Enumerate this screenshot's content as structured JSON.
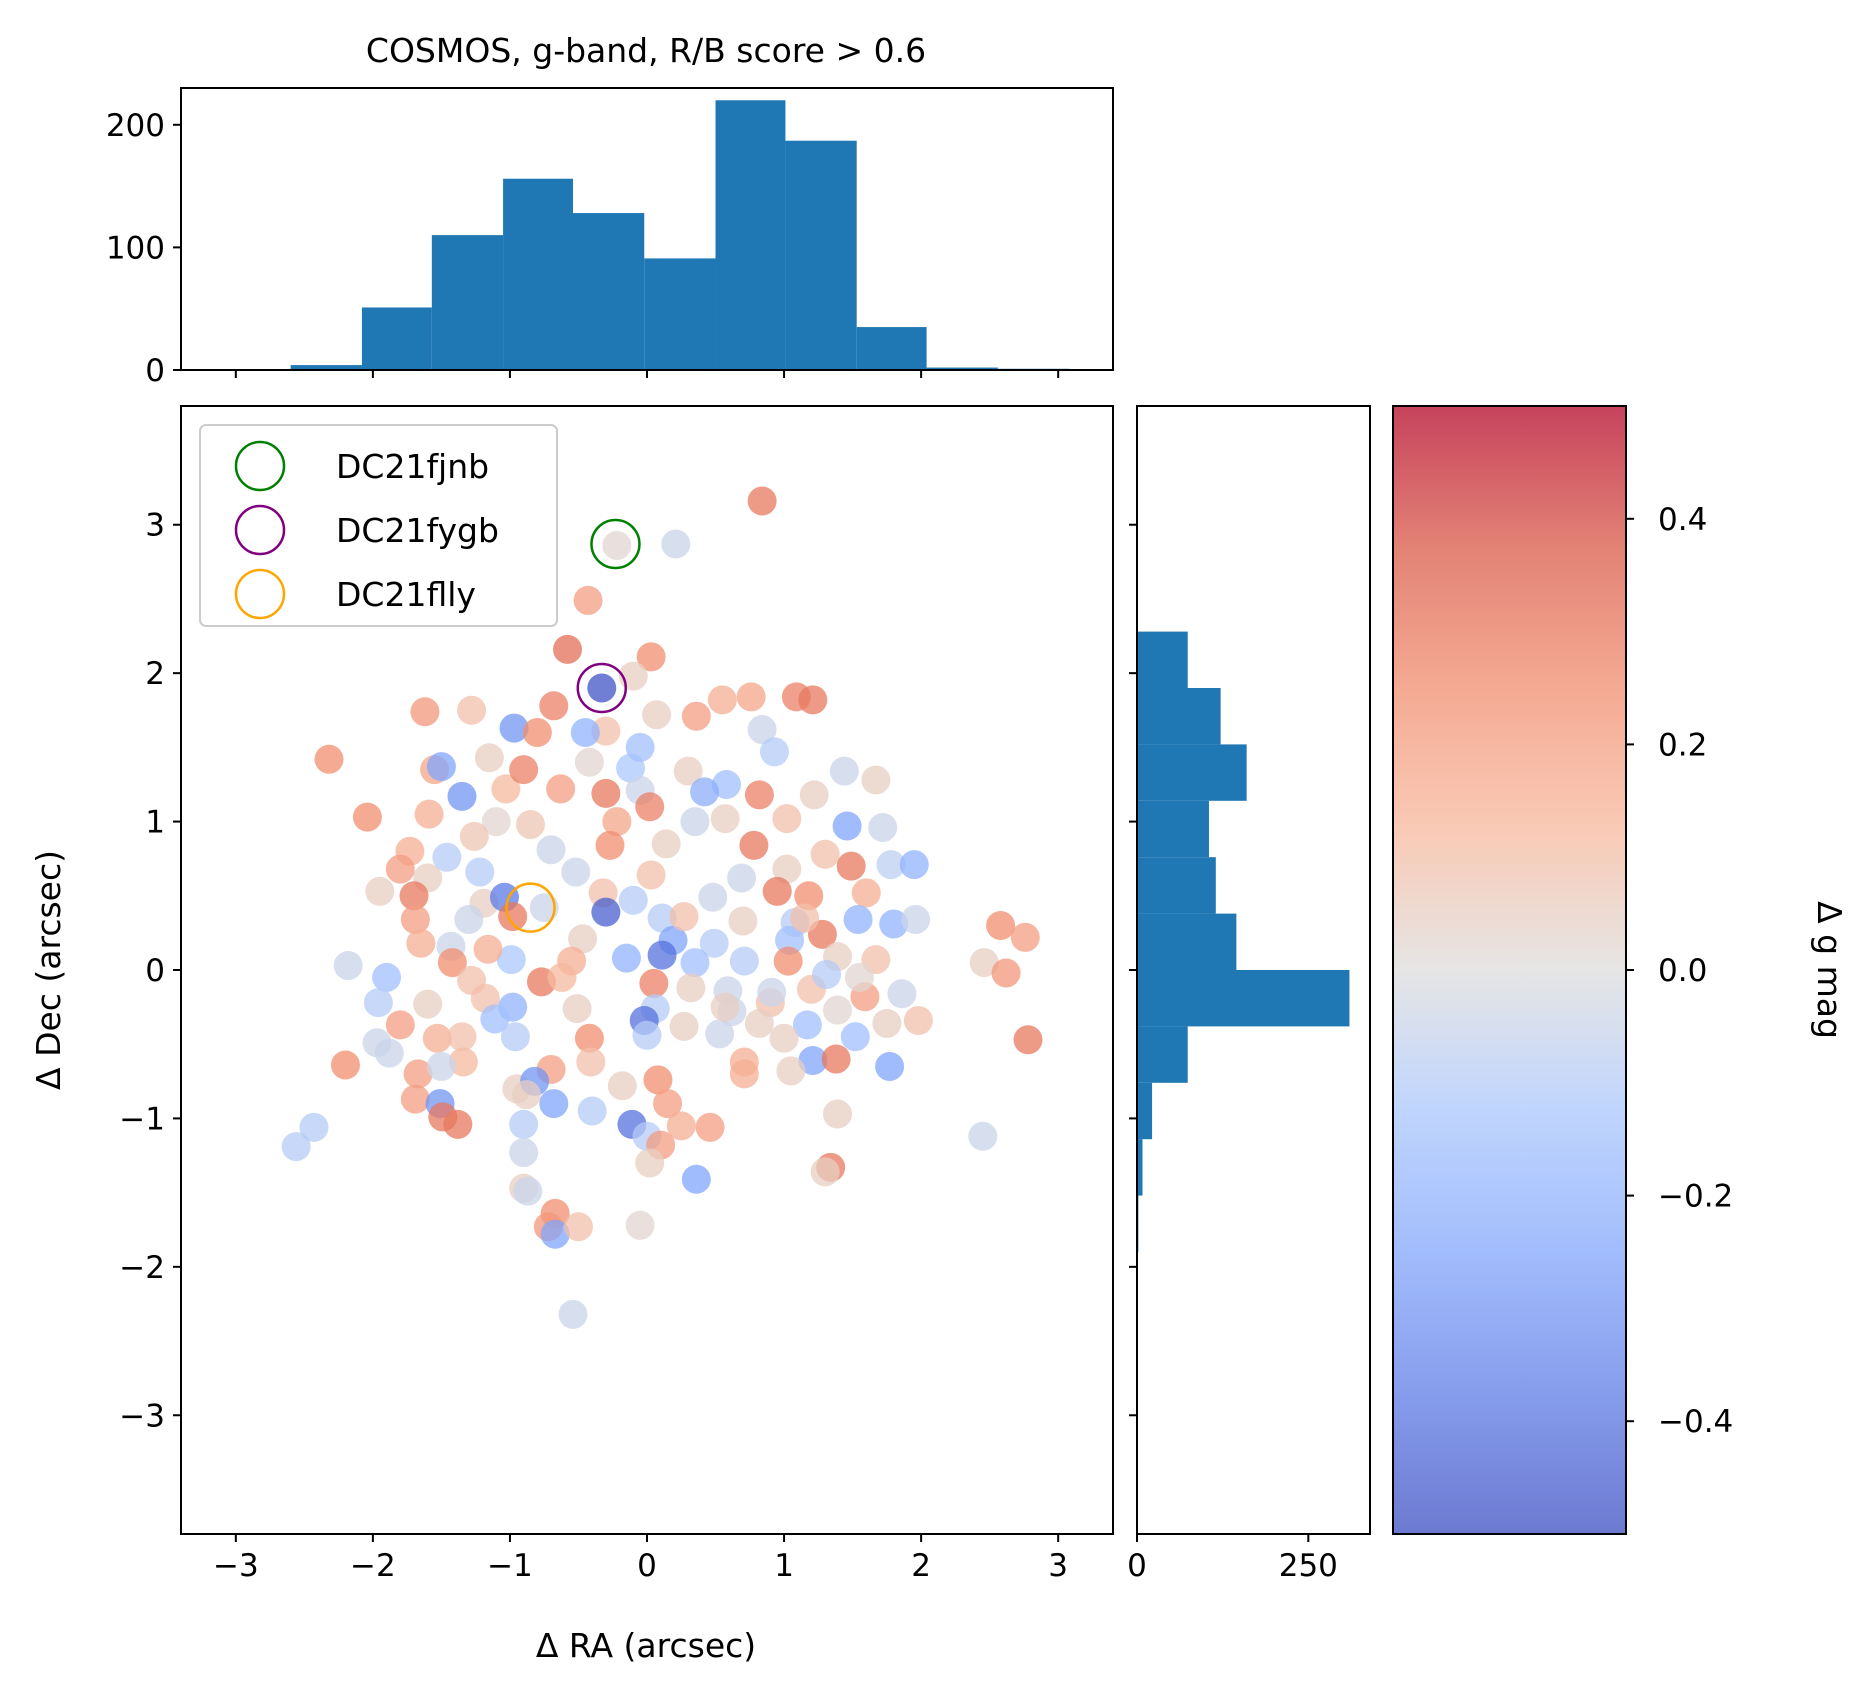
{
  "chart_data": {
    "type": "scatter",
    "title": "COSMOS, g-band, R/B score > 0.6",
    "xlabel": "Δ RA (arcsec)",
    "ylabel": "Δ Dec (arcsec)",
    "xlim": [
      -3.4,
      3.4
    ],
    "ylim": [
      -3.8,
      3.8
    ],
    "xticks": [
      -3,
      -2,
      -1,
      0,
      1,
      2,
      3
    ],
    "xtick_labels": [
      "−3",
      "−2",
      "−1",
      "0",
      "1",
      "2",
      "3"
    ],
    "yticks": [
      -3,
      -2,
      -1,
      0,
      1,
      2,
      3
    ],
    "ytick_labels": [
      "−3",
      "−2",
      "−1",
      "0",
      "1",
      "2",
      "3"
    ],
    "grid": false,
    "legend_placement": "top-left",
    "markers": [
      {
        "name": "DC21fjnb",
        "x": -0.23,
        "y": 2.87,
        "color": "#008000"
      },
      {
        "name": "DC21fygb",
        "x": -0.33,
        "y": 1.9,
        "color": "#800080"
      },
      {
        "name": "DC21flly",
        "x": -0.85,
        "y": 0.42,
        "color": "#ffa500"
      }
    ],
    "hist_x": {
      "ylim": [
        0,
        230
      ],
      "yticks": [
        0,
        100,
        200
      ],
      "ytick_labels": [
        "0",
        "100",
        "200"
      ],
      "bin_edges": [
        -2.6,
        -2.08,
        -1.57,
        -1.05,
        -0.54,
        -0.02,
        0.5,
        1.01,
        1.53,
        2.04,
        2.56,
        3.08
      ],
      "counts": [
        4,
        51,
        110,
        156,
        128,
        91,
        220,
        187,
        35,
        2,
        1
      ]
    },
    "hist_y": {
      "xlim": [
        0,
        340
      ],
      "xticks": [
        0,
        250
      ],
      "xtick_labels": [
        "0",
        "250"
      ],
      "bin_edges": [
        -1.9,
        -1.52,
        -1.14,
        -0.76,
        -0.38,
        0.0,
        0.38,
        0.76,
        1.14,
        1.52,
        1.9,
        2.28
      ],
      "counts": [
        2,
        8,
        22,
        74,
        310,
        145,
        115,
        105,
        160,
        122,
        74
      ]
    },
    "colorbar": {
      "label": "Δ g mag",
      "range": [
        -0.5,
        0.5
      ],
      "ticks": [
        -0.4,
        -0.2,
        0.0,
        0.2,
        0.4
      ],
      "tick_labels": [
        "−0.4",
        "−0.2",
        "0.0",
        "0.2",
        "0.4"
      ],
      "colormap": "coolwarm",
      "alpha": 0.75
    },
    "points": [
      {
        "x": 0.84,
        "y": 3.16,
        "v": 0.3
      },
      {
        "x": 0.21,
        "y": 2.87,
        "v": -0.05
      },
      {
        "x": -0.22,
        "y": 2.86,
        "v": 0.02
      },
      {
        "x": -0.43,
        "y": 2.49,
        "v": 0.2
      },
      {
        "x": -0.58,
        "y": 2.16,
        "v": 0.32
      },
      {
        "x": 0.03,
        "y": 2.11,
        "v": 0.25
      },
      {
        "x": -0.33,
        "y": 1.9,
        "v": -0.48
      },
      {
        "x": -0.1,
        "y": 1.98,
        "v": 0.05
      },
      {
        "x": -1.62,
        "y": 1.74,
        "v": 0.22
      },
      {
        "x": -1.28,
        "y": 1.75,
        "v": 0.1
      },
      {
        "x": -0.68,
        "y": 1.78,
        "v": 0.28
      },
      {
        "x": 0.55,
        "y": 1.82,
        "v": 0.15
      },
      {
        "x": 1.09,
        "y": 1.84,
        "v": 0.28
      },
      {
        "x": 1.21,
        "y": 1.82,
        "v": 0.3
      },
      {
        "x": 0.76,
        "y": 1.84,
        "v": 0.18
      },
      {
        "x": -0.97,
        "y": 1.63,
        "v": -0.3
      },
      {
        "x": -0.8,
        "y": 1.6,
        "v": 0.25
      },
      {
        "x": -0.3,
        "y": 1.61,
        "v": 0.1
      },
      {
        "x": 0.07,
        "y": 1.72,
        "v": 0.05
      },
      {
        "x": 0.36,
        "y": 1.71,
        "v": 0.2
      },
      {
        "x": 0.84,
        "y": 1.62,
        "v": -0.05
      },
      {
        "x": 0.93,
        "y": 1.47,
        "v": -0.1
      },
      {
        "x": -2.32,
        "y": 1.42,
        "v": 0.25
      },
      {
        "x": -1.55,
        "y": 1.35,
        "v": 0.18
      },
      {
        "x": -1.15,
        "y": 1.43,
        "v": 0.05
      },
      {
        "x": -1.5,
        "y": 1.37,
        "v": -0.25
      },
      {
        "x": -0.42,
        "y": 1.4,
        "v": 0.02
      },
      {
        "x": -0.12,
        "y": 1.36,
        "v": -0.12
      },
      {
        "x": 0.3,
        "y": 1.34,
        "v": 0.05
      },
      {
        "x": 0.58,
        "y": 1.25,
        "v": -0.15
      },
      {
        "x": 1.44,
        "y": 1.34,
        "v": -0.05
      },
      {
        "x": 1.67,
        "y": 1.28,
        "v": 0.05
      },
      {
        "x": -1.35,
        "y": 1.17,
        "v": -0.3
      },
      {
        "x": -1.03,
        "y": 1.22,
        "v": 0.12
      },
      {
        "x": -0.63,
        "y": 1.22,
        "v": 0.2
      },
      {
        "x": -0.3,
        "y": 1.19,
        "v": 0.3
      },
      {
        "x": -0.05,
        "y": 1.21,
        "v": -0.05
      },
      {
        "x": 0.42,
        "y": 1.2,
        "v": -0.22
      },
      {
        "x": 0.82,
        "y": 1.18,
        "v": 0.28
      },
      {
        "x": 1.22,
        "y": 1.18,
        "v": 0.05
      },
      {
        "x": -2.04,
        "y": 1.03,
        "v": 0.25
      },
      {
        "x": -1.59,
        "y": 1.05,
        "v": 0.15
      },
      {
        "x": -1.1,
        "y": 1.0,
        "v": 0.02
      },
      {
        "x": -0.85,
        "y": 0.98,
        "v": 0.08
      },
      {
        "x": -0.22,
        "y": 1.0,
        "v": 0.18
      },
      {
        "x": 0.02,
        "y": 1.1,
        "v": 0.28
      },
      {
        "x": 0.35,
        "y": 1.0,
        "v": -0.05
      },
      {
        "x": 1.02,
        "y": 1.02,
        "v": 0.1
      },
      {
        "x": 1.46,
        "y": 0.97,
        "v": -0.25
      },
      {
        "x": 1.72,
        "y": 0.96,
        "v": -0.05
      },
      {
        "x": -1.73,
        "y": 0.8,
        "v": 0.15
      },
      {
        "x": -1.46,
        "y": 0.76,
        "v": -0.1
      },
      {
        "x": -0.7,
        "y": 0.81,
        "v": -0.05
      },
      {
        "x": -0.27,
        "y": 0.84,
        "v": 0.25
      },
      {
        "x": 0.14,
        "y": 0.85,
        "v": 0.05
      },
      {
        "x": 0.78,
        "y": 0.84,
        "v": 0.3
      },
      {
        "x": 1.3,
        "y": 0.78,
        "v": 0.1
      },
      {
        "x": 1.78,
        "y": 0.71,
        "v": -0.08
      },
      {
        "x": 1.95,
        "y": 0.71,
        "v": -0.2
      },
      {
        "x": -1.8,
        "y": 0.68,
        "v": 0.2
      },
      {
        "x": -1.6,
        "y": 0.62,
        "v": 0.05
      },
      {
        "x": -1.22,
        "y": 0.66,
        "v": -0.1
      },
      {
        "x": -0.52,
        "y": 0.66,
        "v": -0.05
      },
      {
        "x": 0.03,
        "y": 0.64,
        "v": 0.1
      },
      {
        "x": 0.69,
        "y": 0.62,
        "v": -0.05
      },
      {
        "x": 1.02,
        "y": 0.68,
        "v": 0.05
      },
      {
        "x": 1.49,
        "y": 0.7,
        "v": 0.3
      },
      {
        "x": -1.95,
        "y": 0.53,
        "v": 0.05
      },
      {
        "x": -1.7,
        "y": 0.5,
        "v": 0.3
      },
      {
        "x": -1.19,
        "y": 0.45,
        "v": 0.05
      },
      {
        "x": -1.04,
        "y": 0.49,
        "v": -0.38
      },
      {
        "x": -0.32,
        "y": 0.52,
        "v": 0.1
      },
      {
        "x": -0.1,
        "y": 0.47,
        "v": -0.1
      },
      {
        "x": 0.48,
        "y": 0.49,
        "v": -0.05
      },
      {
        "x": 0.95,
        "y": 0.53,
        "v": 0.3
      },
      {
        "x": 1.18,
        "y": 0.5,
        "v": 0.25
      },
      {
        "x": 1.6,
        "y": 0.52,
        "v": 0.15
      },
      {
        "x": -1.69,
        "y": 0.34,
        "v": 0.2
      },
      {
        "x": -1.3,
        "y": 0.34,
        "v": -0.05
      },
      {
        "x": -0.98,
        "y": 0.36,
        "v": 0.3
      },
      {
        "x": -0.3,
        "y": 0.39,
        "v": -0.45
      },
      {
        "x": 0.11,
        "y": 0.35,
        "v": -0.1
      },
      {
        "x": 0.7,
        "y": 0.33,
        "v": 0.05
      },
      {
        "x": 1.08,
        "y": 0.32,
        "v": -0.1
      },
      {
        "x": 1.54,
        "y": 0.34,
        "v": -0.2
      },
      {
        "x": 1.8,
        "y": 0.31,
        "v": -0.2
      },
      {
        "x": 1.96,
        "y": 0.34,
        "v": -0.05
      },
      {
        "x": 2.58,
        "y": 0.3,
        "v": 0.25
      },
      {
        "x": 2.76,
        "y": 0.22,
        "v": 0.2
      },
      {
        "x": -1.65,
        "y": 0.18,
        "v": 0.15
      },
      {
        "x": -1.43,
        "y": 0.16,
        "v": -0.05
      },
      {
        "x": -0.47,
        "y": 0.21,
        "v": 0.05
      },
      {
        "x": 0.19,
        "y": 0.2,
        "v": -0.25
      },
      {
        "x": 0.49,
        "y": 0.18,
        "v": -0.1
      },
      {
        "x": 1.04,
        "y": 0.2,
        "v": -0.15
      },
      {
        "x": 1.28,
        "y": 0.24,
        "v": 0.3
      },
      {
        "x": -2.18,
        "y": 0.03,
        "v": -0.05
      },
      {
        "x": -1.42,
        "y": 0.05,
        "v": 0.25
      },
      {
        "x": -0.99,
        "y": 0.07,
        "v": -0.12
      },
      {
        "x": -0.55,
        "y": 0.06,
        "v": 0.15
      },
      {
        "x": -0.15,
        "y": 0.08,
        "v": -0.2
      },
      {
        "x": 0.11,
        "y": 0.1,
        "v": -0.4
      },
      {
        "x": 0.35,
        "y": 0.05,
        "v": -0.15
      },
      {
        "x": 0.71,
        "y": 0.06,
        "v": -0.1
      },
      {
        "x": 1.03,
        "y": 0.06,
        "v": 0.25
      },
      {
        "x": 1.39,
        "y": 0.09,
        "v": 0.05
      },
      {
        "x": 1.67,
        "y": 0.07,
        "v": 0.1
      },
      {
        "x": 2.46,
        "y": 0.05,
        "v": 0.05
      },
      {
        "x": 2.62,
        "y": -0.02,
        "v": 0.22
      },
      {
        "x": -1.9,
        "y": -0.05,
        "v": -0.15
      },
      {
        "x": -1.28,
        "y": -0.07,
        "v": 0.1
      },
      {
        "x": -0.77,
        "y": -0.08,
        "v": 0.3
      },
      {
        "x": 0.05,
        "y": -0.09,
        "v": 0.28
      },
      {
        "x": 0.32,
        "y": -0.12,
        "v": 0.05
      },
      {
        "x": 0.59,
        "y": -0.14,
        "v": -0.05
      },
      {
        "x": 1.2,
        "y": -0.13,
        "v": 0.1
      },
      {
        "x": 1.59,
        "y": -0.18,
        "v": 0.2
      },
      {
        "x": 1.86,
        "y": -0.16,
        "v": -0.05
      },
      {
        "x": -1.96,
        "y": -0.22,
        "v": -0.1
      },
      {
        "x": -1.6,
        "y": -0.23,
        "v": 0.05
      },
      {
        "x": -1.18,
        "y": -0.19,
        "v": 0.1
      },
      {
        "x": -0.98,
        "y": -0.25,
        "v": -0.2
      },
      {
        "x": -0.51,
        "y": -0.26,
        "v": 0.05
      },
      {
        "x": 0.06,
        "y": -0.26,
        "v": -0.1
      },
      {
        "x": 0.62,
        "y": -0.28,
        "v": -0.05
      },
      {
        "x": 0.9,
        "y": -0.22,
        "v": 0.1
      },
      {
        "x": 1.39,
        "y": -0.27,
        "v": 0.02
      },
      {
        "x": -1.8,
        "y": -0.37,
        "v": 0.2
      },
      {
        "x": -1.11,
        "y": -0.33,
        "v": -0.15
      },
      {
        "x": -0.02,
        "y": -0.34,
        "v": -0.4
      },
      {
        "x": 0.27,
        "y": -0.38,
        "v": 0.05
      },
      {
        "x": 0.82,
        "y": -0.36,
        "v": 0.05
      },
      {
        "x": 1.17,
        "y": -0.37,
        "v": -0.15
      },
      {
        "x": 1.75,
        "y": -0.36,
        "v": 0.05
      },
      {
        "x": 1.98,
        "y": -0.34,
        "v": 0.1
      },
      {
        "x": -1.97,
        "y": -0.49,
        "v": -0.05
      },
      {
        "x": -1.53,
        "y": -0.46,
        "v": 0.15
      },
      {
        "x": -0.96,
        "y": -0.45,
        "v": -0.1
      },
      {
        "x": -0.42,
        "y": -0.46,
        "v": 0.25
      },
      {
        "x": 0.0,
        "y": -0.44,
        "v": -0.1
      },
      {
        "x": 0.53,
        "y": -0.43,
        "v": -0.05
      },
      {
        "x": 1.0,
        "y": -0.46,
        "v": 0.05
      },
      {
        "x": 1.52,
        "y": -0.45,
        "v": -0.15
      },
      {
        "x": 2.78,
        "y": -0.47,
        "v": 0.3
      },
      {
        "x": -1.88,
        "y": -0.56,
        "v": -0.05
      },
      {
        "x": -1.34,
        "y": -0.62,
        "v": 0.12
      },
      {
        "x": -0.41,
        "y": -0.62,
        "v": 0.1
      },
      {
        "x": 0.71,
        "y": -0.62,
        "v": 0.15
      },
      {
        "x": 1.21,
        "y": -0.61,
        "v": -0.25
      },
      {
        "x": 1.38,
        "y": -0.6,
        "v": 0.3
      },
      {
        "x": -2.2,
        "y": -0.64,
        "v": 0.25
      },
      {
        "x": -1.67,
        "y": -0.7,
        "v": 0.2
      },
      {
        "x": -1.5,
        "y": -0.65,
        "v": -0.05
      },
      {
        "x": -0.7,
        "y": -0.67,
        "v": 0.2
      },
      {
        "x": 0.08,
        "y": -0.74,
        "v": 0.25
      },
      {
        "x": 0.71,
        "y": -0.7,
        "v": 0.15
      },
      {
        "x": 1.05,
        "y": -0.68,
        "v": 0.05
      },
      {
        "x": 1.77,
        "y": -0.65,
        "v": -0.25
      },
      {
        "x": -0.95,
        "y": -0.8,
        "v": 0.05
      },
      {
        "x": -0.82,
        "y": -0.75,
        "v": -0.3
      },
      {
        "x": -0.18,
        "y": -0.78,
        "v": 0.05
      },
      {
        "x": -1.69,
        "y": -0.87,
        "v": 0.2
      },
      {
        "x": -1.51,
        "y": -0.9,
        "v": -0.3
      },
      {
        "x": -0.88,
        "y": -0.84,
        "v": 0.05
      },
      {
        "x": -0.68,
        "y": -0.9,
        "v": -0.25
      },
      {
        "x": -1.49,
        "y": -0.99,
        "v": 0.3
      },
      {
        "x": -0.4,
        "y": -0.95,
        "v": -0.1
      },
      {
        "x": 0.15,
        "y": -0.9,
        "v": 0.2
      },
      {
        "x": 1.39,
        "y": -0.97,
        "v": 0.05
      },
      {
        "x": -1.38,
        "y": -1.04,
        "v": 0.3
      },
      {
        "x": -0.9,
        "y": -1.04,
        "v": -0.1
      },
      {
        "x": -0.11,
        "y": -1.04,
        "v": -0.4
      },
      {
        "x": 0.25,
        "y": -1.05,
        "v": 0.15
      },
      {
        "x": 0.46,
        "y": -1.06,
        "v": 0.2
      },
      {
        "x": 2.45,
        "y": -1.12,
        "v": -0.05
      },
      {
        "x": -2.43,
        "y": -1.06,
        "v": -0.1
      },
      {
        "x": -2.56,
        "y": -1.19,
        "v": -0.1
      },
      {
        "x": -0.9,
        "y": -1.23,
        "v": -0.05
      },
      {
        "x": 0.0,
        "y": -1.12,
        "v": -0.1
      },
      {
        "x": 0.1,
        "y": -1.18,
        "v": 0.2
      },
      {
        "x": 0.02,
        "y": -1.3,
        "v": 0.05
      },
      {
        "x": 1.34,
        "y": -1.33,
        "v": 0.3
      },
      {
        "x": 1.3,
        "y": -1.36,
        "v": 0.05
      },
      {
        "x": 0.36,
        "y": -1.41,
        "v": -0.25
      },
      {
        "x": -0.9,
        "y": -1.47,
        "v": 0.05
      },
      {
        "x": -0.87,
        "y": -1.49,
        "v": -0.05
      },
      {
        "x": -0.67,
        "y": -1.64,
        "v": 0.25
      },
      {
        "x": -0.72,
        "y": -1.73,
        "v": 0.22
      },
      {
        "x": -0.67,
        "y": -1.78,
        "v": -0.25
      },
      {
        "x": -0.5,
        "y": -1.73,
        "v": 0.1
      },
      {
        "x": -0.05,
        "y": -1.72,
        "v": 0.02
      },
      {
        "x": -0.54,
        "y": -2.32,
        "v": -0.05
      },
      {
        "x": -1.16,
        "y": 0.14,
        "v": 0.15
      },
      {
        "x": -0.75,
        "y": 0.42,
        "v": -0.05
      },
      {
        "x": 0.27,
        "y": 0.36,
        "v": 0.1
      },
      {
        "x": 1.31,
        "y": -0.03,
        "v": -0.1
      },
      {
        "x": 0.91,
        "y": -0.15,
        "v": -0.05
      },
      {
        "x": -1.26,
        "y": 0.9,
        "v": 0.08
      },
      {
        "x": -0.05,
        "y": 1.5,
        "v": -0.15
      },
      {
        "x": -0.9,
        "y": 1.35,
        "v": 0.28
      },
      {
        "x": 0.57,
        "y": 1.02,
        "v": 0.05
      },
      {
        "x": 1.15,
        "y": 0.35,
        "v": 0.1
      },
      {
        "x": 0.57,
        "y": -0.25,
        "v": 0.05
      },
      {
        "x": -1.35,
        "y": -0.45,
        "v": 0.1
      },
      {
        "x": -0.62,
        "y": -0.05,
        "v": 0.12
      },
      {
        "x": 1.55,
        "y": -0.05,
        "v": 0.02
      },
      {
        "x": -0.45,
        "y": 1.6,
        "v": -0.2
      }
    ]
  }
}
